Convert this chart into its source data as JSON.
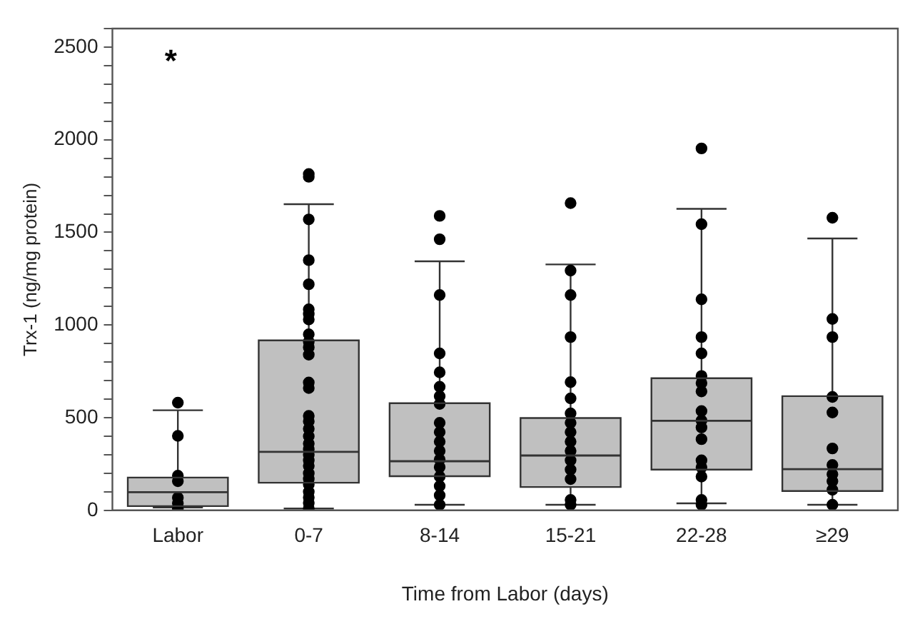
{
  "chart_data": {
    "type": "box",
    "xlabel": "Time from Labor (days)",
    "ylabel": "Trx-1 (ng/mg protein)",
    "categories": [
      "Labor",
      "0-7",
      "8-14",
      "15-21",
      "22-28",
      "≥29"
    ],
    "color": "#c0c0c0",
    "boxes": [
      {
        "low": 15,
        "q1": 23,
        "median": 98,
        "q3": 177,
        "high": 540
      },
      {
        "low": 10,
        "q1": 149,
        "median": 316,
        "q3": 917,
        "high": 1652
      },
      {
        "low": 30,
        "q1": 184,
        "median": 265,
        "q3": 578,
        "high": 1344
      },
      {
        "low": 30,
        "q1": 126,
        "median": 296,
        "q3": 498,
        "high": 1327
      },
      {
        "low": 38,
        "q1": 220,
        "median": 483,
        "q3": 713,
        "high": 1627
      },
      {
        "low": 30,
        "q1": 104,
        "median": 222,
        "q3": 616,
        "high": 1467
      }
    ],
    "series": [
      {
        "type": "scatter",
        "color": "#000000",
        "marker": "circle",
        "x": [
          "Labor",
          "Labor",
          "Labor",
          "Labor",
          "Labor",
          "Labor",
          "Labor",
          "0-7",
          "0-7",
          "0-7",
          "0-7",
          "0-7",
          "0-7",
          "0-7",
          "0-7",
          "0-7",
          "0-7",
          "0-7",
          "0-7",
          "0-7",
          "0-7",
          "0-7",
          "0-7",
          "0-7",
          "0-7",
          "0-7",
          "0-7",
          "0-7",
          "0-7",
          "0-7",
          "0-7",
          "0-7",
          "0-7",
          "0-7",
          "0-7",
          "0-7",
          "0-7",
          "8-14",
          "8-14",
          "8-14",
          "8-14",
          "8-14",
          "8-14",
          "8-14",
          "8-14",
          "8-14",
          "8-14",
          "8-14",
          "8-14",
          "8-14",
          "8-14",
          "8-14",
          "8-14",
          "8-14",
          "8-14",
          "15-21",
          "15-21",
          "15-21",
          "15-21",
          "15-21",
          "15-21",
          "15-21",
          "15-21",
          "15-21",
          "15-21",
          "15-21",
          "15-21",
          "15-21",
          "15-21",
          "15-21",
          "15-21",
          "22-28",
          "22-28",
          "22-28",
          "22-28",
          "22-28",
          "22-28",
          "22-28",
          "22-28",
          "22-28",
          "22-28",
          "22-28",
          "22-28",
          "22-28",
          "22-28",
          "22-28",
          "22-28",
          "22-28",
          "≥29",
          "≥29",
          "≥29",
          "≥29",
          "≥29",
          "≥29",
          "≥29",
          "≥29",
          "≥29",
          "≥29",
          "≥29"
        ],
        "values": [
          581,
          402,
          187,
          157,
          68,
          38,
          10,
          1815,
          1800,
          1570,
          1350,
          1220,
          1085,
          1060,
          1030,
          950,
          910,
          880,
          840,
          690,
          660,
          510,
          480,
          440,
          400,
          360,
          330,
          300,
          270,
          240,
          200,
          170,
          140,
          100,
          70,
          40,
          10,
          1589,
          1463,
          1162,
          847,
          745,
          667,
          616,
          574,
          472,
          422,
          371,
          321,
          275,
          233,
          182,
          131,
          81,
          30,
          1658,
          1294,
          1162,
          935,
          692,
          604,
          523,
          472,
          422,
          371,
          321,
          270,
          220,
          169,
          56,
          30,
          1953,
          1544,
          1139,
          935,
          847,
          725,
          687,
          642,
          536,
          485,
          447,
          384,
          270,
          232,
          182,
          56,
          30,
          1579,
          1033,
          935,
          612,
          528,
          334,
          245,
          195,
          157,
          111,
          30
        ]
      }
    ],
    "annotations": [
      "*"
    ],
    "ylim": [
      0,
      2600
    ],
    "yticks": [
      0,
      {
        "value": 100,
        "label": null
      },
      {
        "value": 200,
        "label": null
      },
      {
        "value": 300,
        "label": null
      },
      {
        "value": 400,
        "label": null
      },
      500,
      {
        "value": 600,
        "label": null
      },
      {
        "value": 700,
        "label": null
      },
      {
        "value": 800,
        "label": null
      },
      {
        "value": 900,
        "label": null
      },
      1000,
      {
        "value": 1100,
        "label": null
      },
      {
        "value": 1200,
        "label": null
      },
      {
        "value": 1300,
        "label": null
      },
      {
        "value": 1400,
        "label": null
      },
      1500,
      {
        "value": 1600,
        "label": null
      },
      {
        "value": 1700,
        "label": null
      },
      {
        "value": 1800,
        "label": null
      },
      {
        "value": 1900,
        "label": null
      },
      2000,
      {
        "value": 2100,
        "label": null
      },
      {
        "value": 2200,
        "label": null
      },
      {
        "value": 2300,
        "label": null
      },
      {
        "value": 2400,
        "label": null
      },
      2500,
      {
        "value": 2600,
        "label": null
      }
    ],
    "grid": false,
    "legend": false
  }
}
